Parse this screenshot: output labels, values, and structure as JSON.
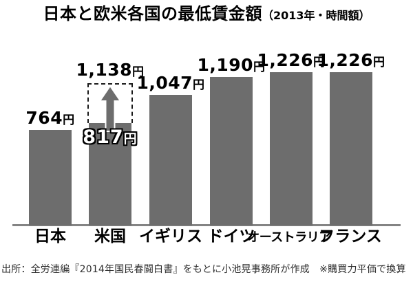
{
  "chart_data": {
    "type": "bar",
    "title": "日本と欧米各国の最低賃金額",
    "subtitle": "（2013年・時間額）",
    "unit": "円",
    "categories": [
      "日本",
      "米国",
      "イギリス",
      "ドイツ",
      "オーストラリア",
      "フランス"
    ],
    "values": [
      764,
      817,
      1047,
      1190,
      1226,
      1226
    ],
    "value_labels": [
      "764",
      "817",
      "1,047",
      "1,190",
      "1,226",
      "1,226"
    ],
    "annotations": {
      "us_projection": {
        "from_value": 817,
        "to_value": 1138,
        "label": "1,138",
        "style": "dashed-box-with-up-arrow"
      }
    },
    "ylim": [
      0,
      1300
    ],
    "grid": false,
    "legend": "none",
    "bar_color": "#6d6d6d",
    "source_note": "出所：全労連編『2014年国民春闘白書』をもとに小池晃事務所が作成　※購買力平価で換算"
  }
}
